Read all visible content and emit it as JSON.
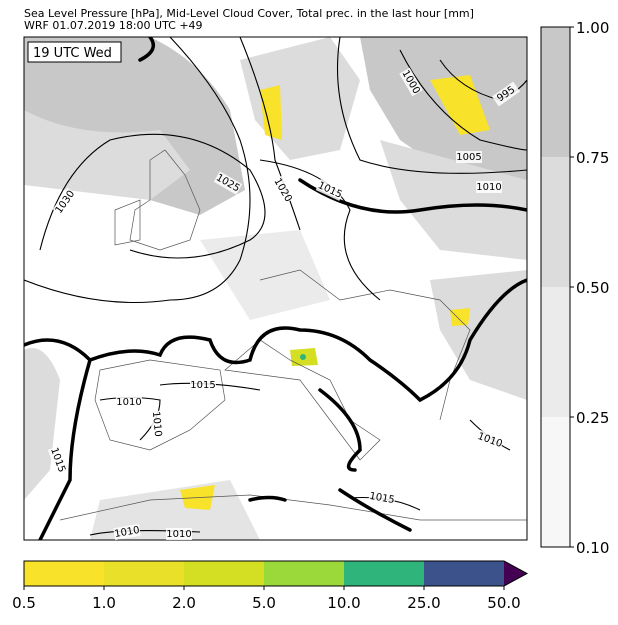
{
  "header": {
    "title": "Sea Level Pressure [hPa], Mid-Level Cloud Cover, Total prec. in the last hour [mm]",
    "subtitle": "WRF 01.07.2019 18:00 UTC +49"
  },
  "map": {
    "time_label": "19 UTC Wed",
    "isobar_labels": [
      "1030",
      "1025",
      "1020",
      "1015",
      "1010",
      "1005",
      "1000",
      "995",
      "1015",
      "1010",
      "1010",
      "1015",
      "1015",
      "1010",
      "1010",
      "1010"
    ]
  },
  "cloud_colorbar": {
    "ticks": [
      "1.00",
      "0.75",
      "0.50",
      "0.25",
      "0.10"
    ]
  },
  "precip_colorbar": {
    "ticks": [
      "0.5",
      "1.0",
      "2.0",
      "5.0",
      "10.0",
      "25.0",
      "50.0"
    ]
  }
}
